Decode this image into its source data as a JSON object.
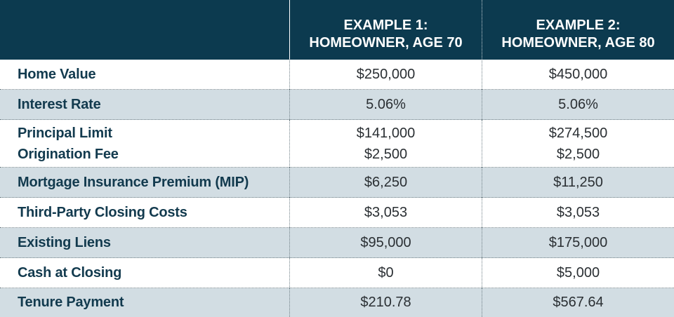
{
  "header": {
    "col1_line1": "EXAMPLE 1:",
    "col1_line2": "HOMEOWNER, AGE 70",
    "col2_line1": "EXAMPLE 2:",
    "col2_line2": "HOMEOWNER, AGE 80"
  },
  "rows": [
    {
      "label": "Home Value",
      "ex1": "$250,000",
      "ex2": "$450,000"
    },
    {
      "label": "Interest Rate",
      "ex1": "5.06%",
      "ex2": "5.06%"
    },
    {
      "label": "Principal Limit",
      "ex1": "$141,000",
      "ex2": "$274,500",
      "label2": "Origination Fee",
      "ex1b": "$2,500",
      "ex2b": "$2,500"
    },
    {
      "label": "Mortgage Insurance Premium (MIP)",
      "ex1": "$6,250",
      "ex2": "$11,250"
    },
    {
      "label": "Third-Party Closing Costs",
      "ex1": "$3,053",
      "ex2": "$3,053"
    },
    {
      "label": "Existing Liens",
      "ex1": "$95,000",
      "ex2": "$175,000"
    },
    {
      "label": "Cash at Closing",
      "ex1": "$0",
      "ex2": "$5,000"
    },
    {
      "label": "Tenure Payment",
      "ex1": "$210.78",
      "ex2": "$567.64"
    }
  ],
  "colors": {
    "header_bg": "#0c3a4f",
    "alt_row_bg": "#d2dde3",
    "label_text": "#123a4e"
  }
}
